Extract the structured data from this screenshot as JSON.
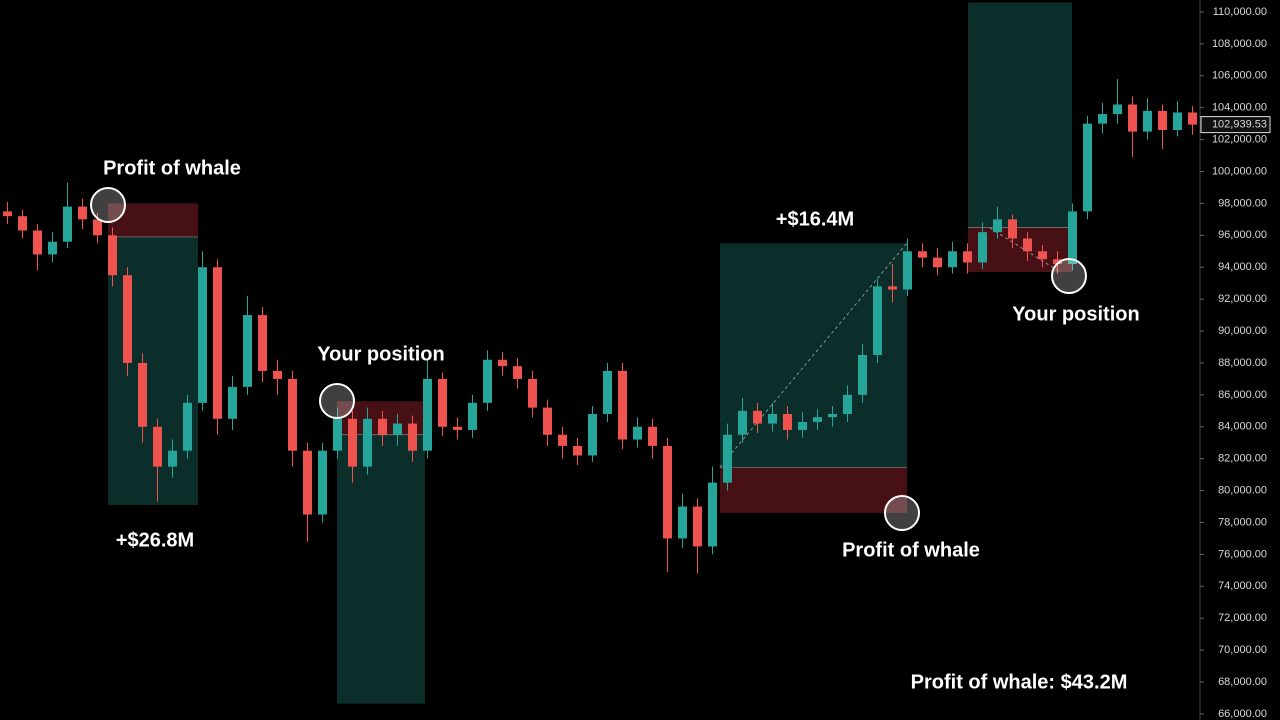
{
  "chart_data": {
    "type": "candlestick",
    "open": [
      97500,
      97200,
      96300,
      94800,
      95600,
      97800,
      97000,
      96000,
      93500,
      88000,
      84000,
      81500,
      82500,
      85500,
      94000,
      84500,
      86500,
      91000,
      87500,
      87000,
      82500,
      78500,
      82500,
      84500,
      81500,
      84500,
      83500,
      84200,
      82500,
      87000,
      84000,
      83800,
      85500,
      88200,
      87800,
      87000,
      85200,
      83500,
      82800,
      82200,
      84800,
      87500,
      83200,
      84000,
      82800,
      77000,
      79000,
      76500,
      80500,
      83500,
      85000,
      84200,
      84800,
      83800,
      84300,
      84600,
      84800,
      86000,
      88500,
      92800,
      92600,
      95000,
      94600,
      94000,
      95000,
      94300,
      96200,
      97000,
      95800,
      95000,
      94500,
      94200,
      97500,
      103000,
      103600,
      104200,
      102500,
      103800,
      102600,
      103700
    ],
    "high": [
      98100,
      97600,
      96700,
      96200,
      99300,
      98300,
      97400,
      96500,
      94000,
      88600,
      84500,
      83200,
      86000,
      95000,
      94500,
      87200,
      92200,
      91500,
      88200,
      87500,
      83000,
      83000,
      85200,
      85000,
      85200,
      85000,
      84800,
      84700,
      88200,
      87400,
      84600,
      86000,
      88800,
      88700,
      88300,
      87500,
      85700,
      84000,
      83300,
      85300,
      88000,
      88000,
      84600,
      84500,
      83300,
      79800,
      79500,
      81500,
      84200,
      85800,
      85500,
      85500,
      85300,
      84900,
      85100,
      85300,
      86600,
      89200,
      93300,
      94200,
      95800,
      95500,
      95200,
      95600,
      95500,
      96800,
      97800,
      97300,
      96200,
      95400,
      95000,
      98000,
      103500,
      104300,
      105800,
      104700,
      104600,
      104200,
      104400,
      104100
    ],
    "low": [
      96700,
      95800,
      93800,
      94300,
      95200,
      96400,
      95500,
      92800,
      87200,
      83000,
      79300,
      80800,
      82000,
      85000,
      83500,
      83800,
      86000,
      86800,
      86000,
      81500,
      76800,
      78000,
      82000,
      80500,
      81000,
      82800,
      82800,
      81800,
      82000,
      83400,
      83200,
      83300,
      85000,
      87200,
      86400,
      84600,
      82800,
      82000,
      81600,
      81800,
      84300,
      82600,
      82700,
      82000,
      74900,
      76400,
      74800,
      76000,
      80000,
      83000,
      83600,
      83700,
      83200,
      83300,
      83800,
      84000,
      84300,
      85500,
      88000,
      91800,
      92200,
      94000,
      93500,
      93600,
      93600,
      93900,
      95800,
      95200,
      94400,
      94000,
      93600,
      93800,
      97000,
      102400,
      103000,
      100900,
      102000,
      101400,
      102200,
      102300
    ],
    "close": [
      97200,
      96300,
      94800,
      95600,
      97800,
      97000,
      96000,
      93500,
      88000,
      84000,
      81500,
      82500,
      85500,
      94000,
      84500,
      86500,
      91000,
      87500,
      87000,
      82500,
      78500,
      82500,
      84500,
      81500,
      84500,
      83500,
      84200,
      82500,
      87000,
      84000,
      83800,
      85500,
      88200,
      87800,
      87000,
      85200,
      83500,
      82800,
      82200,
      84800,
      87500,
      83200,
      84000,
      82800,
      77000,
      79000,
      76500,
      80500,
      83500,
      85000,
      84200,
      84800,
      83800,
      84300,
      84600,
      84800,
      86000,
      88500,
      92800,
      92600,
      95000,
      94600,
      94000,
      95000,
      94300,
      96200,
      97000,
      95800,
      95000,
      94500,
      94200,
      97500,
      103000,
      103600,
      104200,
      102500,
      103800,
      102600,
      103700,
      102939.53
    ],
    "up_color": "#26a69a",
    "down_color": "#ef5350",
    "ylim": [
      65620,
      110750
    ],
    "yticks": [
      {
        "value": 66000,
        "label": "66,000.00"
      },
      {
        "value": 68000,
        "label": "68,000.00"
      },
      {
        "value": 70000,
        "label": "70,000.00"
      },
      {
        "value": 72000,
        "label": "72,000.00"
      },
      {
        "value": 74000,
        "label": "74,000.00"
      },
      {
        "value": 76000,
        "label": "76,000.00"
      },
      {
        "value": 78000,
        "label": "78,000.00"
      },
      {
        "value": 80000,
        "label": "80,000.00"
      },
      {
        "value": 82000,
        "label": "82,000.00"
      },
      {
        "value": 84000,
        "label": "84,000.00"
      },
      {
        "value": 86000,
        "label": "86,000.00"
      },
      {
        "value": 88000,
        "label": "88,000.00"
      },
      {
        "value": 90000,
        "label": "90,000.00"
      },
      {
        "value": 92000,
        "label": "92,000.00"
      },
      {
        "value": 94000,
        "label": "94,000.00"
      },
      {
        "value": 96000,
        "label": "96,000.00"
      },
      {
        "value": 98000,
        "label": "98,000.00"
      },
      {
        "value": 100000,
        "label": "100,000.00"
      },
      {
        "value": 102000,
        "label": "102,000.00"
      },
      {
        "value": 104000,
        "label": "104,000.00"
      },
      {
        "value": 106000,
        "label": "106,000.00"
      },
      {
        "value": 108000,
        "label": "108,000.00"
      },
      {
        "value": 110000,
        "label": "110,000.00"
      }
    ],
    "last_price": {
      "value": 102939.53,
      "label": "102,939.53"
    },
    "positions": [
      {
        "stop": 98000,
        "entry": 95900,
        "target": 79100
      },
      {
        "stop": 85600,
        "entry": 83500,
        "target": 66650
      },
      {
        "target": 95500,
        "entry": 81450,
        "stop": 78600
      },
      {
        "target": 110600,
        "entry": 96500,
        "stop": 93700
      }
    ],
    "annotations": [
      "Profit of whale",
      "+$26.8M",
      "Your position",
      "+$16.4M",
      "Profit of whale",
      "Your position",
      "Profit of whale: $43.2M"
    ]
  }
}
